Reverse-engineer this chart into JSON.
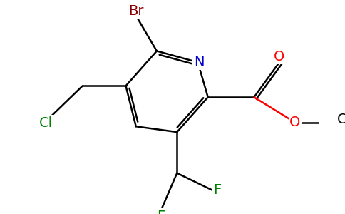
{
  "bg_color": "#ffffff",
  "atom_colors": {
    "Br": "#8b0000",
    "N": "#0000cd",
    "Cl": "#008000",
    "F": "#008000",
    "O": "#ff0000",
    "C": "#000000"
  },
  "bond_color": "#000000",
  "bond_width": 1.8,
  "figsize": [
    4.84,
    3.0
  ],
  "dpi": 100,
  "font_size": 14,
  "font_size_ch3": 12
}
